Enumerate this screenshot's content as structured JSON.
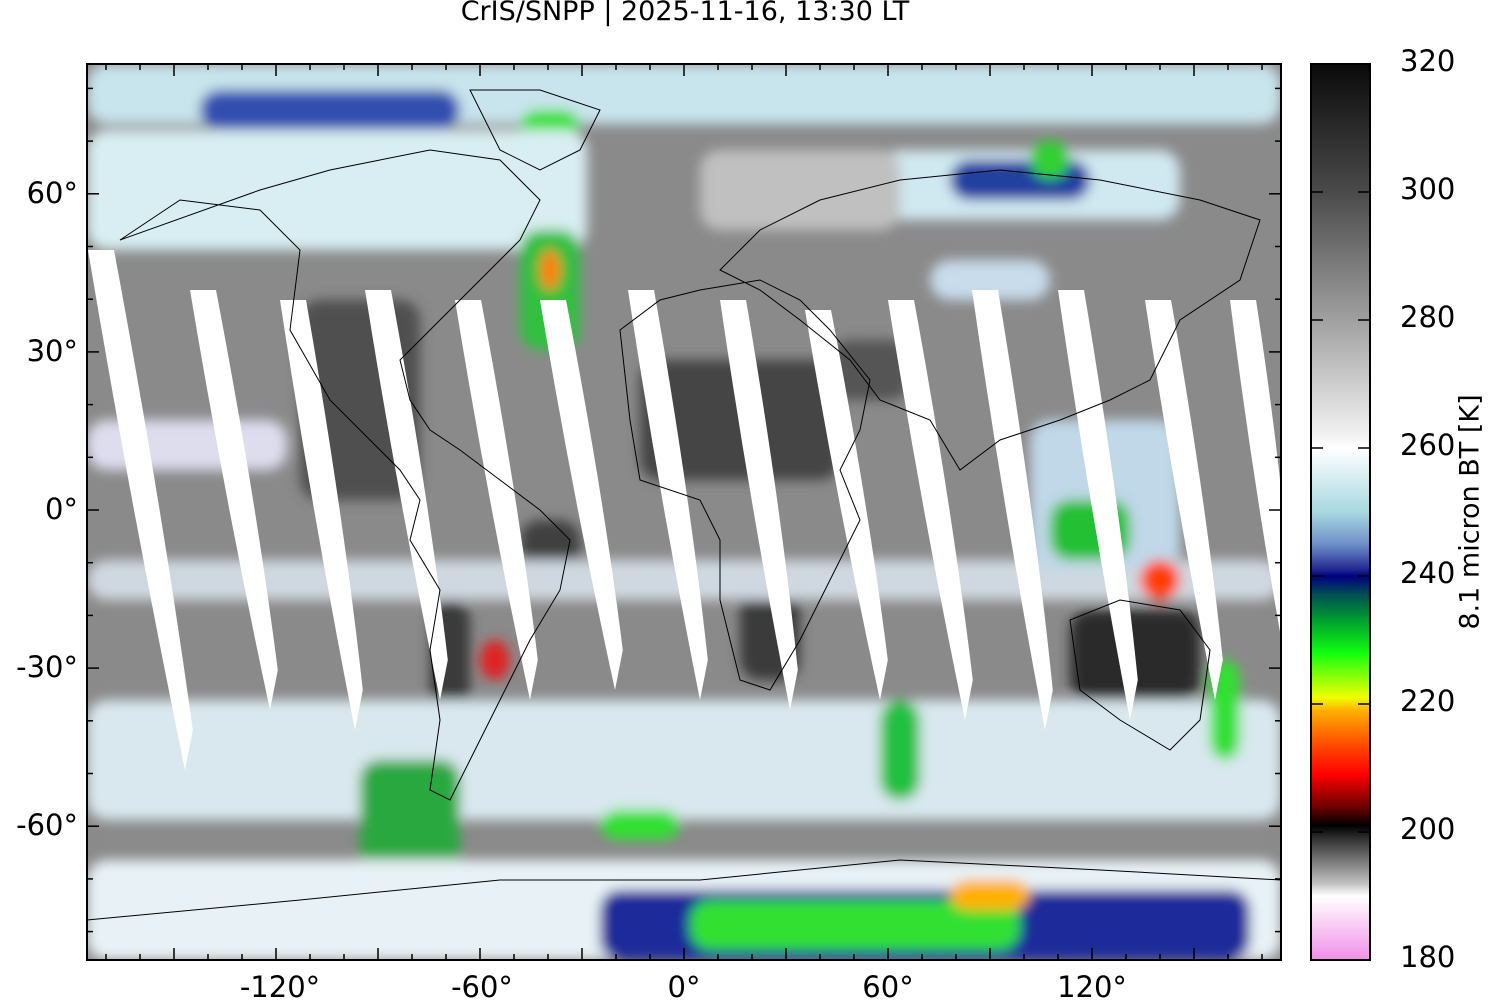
{
  "title": "CrIS/SNPP | 2025-11-16, 13:30 LT",
  "map": {
    "type": "global brightness temperature map",
    "projection": "equirectangular",
    "lat_ticks": [
      "60°",
      "30°",
      "0°",
      "-30°",
      "-60°"
    ],
    "lat_values": [
      60,
      30,
      0,
      -30,
      -60
    ],
    "lon_ticks": [
      "-120°",
      "-60°",
      "0°",
      "60°",
      "120°"
    ],
    "lon_values": [
      -120,
      -60,
      0,
      60,
      120
    ],
    "features": [
      "coastlines",
      "orbit gaps (white swaths)"
    ]
  },
  "colorbar": {
    "label": "8.1 micron BT [K]",
    "ticks": [
      "320",
      "300",
      "280",
      "260",
      "240",
      "220",
      "200",
      "180"
    ],
    "tick_values": [
      320,
      300,
      280,
      260,
      240,
      220,
      200,
      180
    ],
    "range": [
      180,
      320
    ],
    "colors": [
      {
        "v": 320,
        "c": "#0a0a0a"
      },
      {
        "v": 300,
        "c": "#4a4a4a"
      },
      {
        "v": 280,
        "c": "#a0a0a0"
      },
      {
        "v": 262,
        "c": "#f2f2f2"
      },
      {
        "v": 260,
        "c": "#ffffff"
      },
      {
        "v": 250,
        "c": "#a8d8e0"
      },
      {
        "v": 245,
        "c": "#7090c8"
      },
      {
        "v": 241,
        "c": "#202890"
      },
      {
        "v": 240,
        "c": "#000080"
      },
      {
        "v": 237,
        "c": "#005050"
      },
      {
        "v": 233,
        "c": "#00a030"
      },
      {
        "v": 228,
        "c": "#10ff10"
      },
      {
        "v": 221,
        "c": "#f0ff00"
      },
      {
        "v": 219,
        "c": "#ffb000"
      },
      {
        "v": 213,
        "c": "#ff4000"
      },
      {
        "v": 209,
        "c": "#ff0000"
      },
      {
        "v": 204,
        "c": "#700000"
      },
      {
        "v": 201,
        "c": "#000000"
      },
      {
        "v": 199,
        "c": "#303030"
      },
      {
        "v": 192,
        "c": "#c0c0c0"
      },
      {
        "v": 190,
        "c": "#ffffff"
      },
      {
        "v": 180,
        "c": "#f090e8"
      }
    ]
  }
}
